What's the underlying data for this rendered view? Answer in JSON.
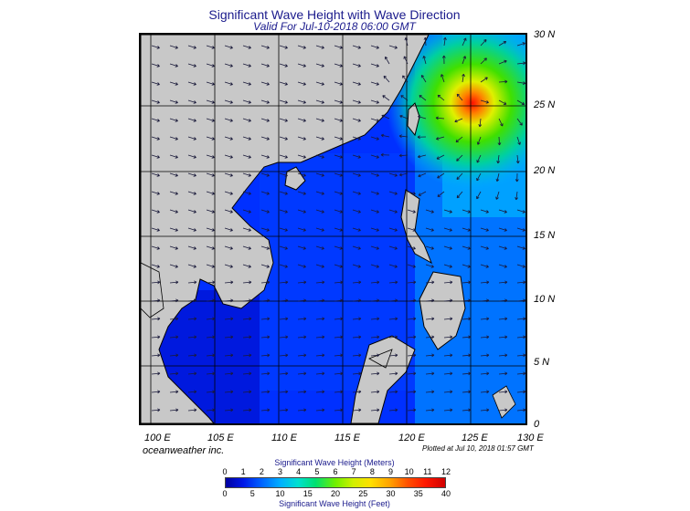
{
  "title": "Significant Wave Height with Wave Direction",
  "subtitle": "Valid For Jul-10-2018 06:00 GMT",
  "credit": "oceanweather inc.",
  "plotted": "Plotted at Jul 10, 2018 01:57 GMT",
  "lat_labels": [
    "30 N",
    "25 N",
    "20 N",
    "15 N",
    "10 N",
    "5 N",
    "0"
  ],
  "lon_labels": [
    "100 E",
    "105 E",
    "110 E",
    "115 E",
    "120 E",
    "125 E",
    "130 E"
  ],
  "colorbar": {
    "meters_title": "Significant Wave Height (Meters)",
    "feet_title": "Significant Wave Height (Feet)",
    "meters_ticks": [
      "0",
      "1",
      "2",
      "3",
      "4",
      "5",
      "6",
      "7",
      "8",
      "9",
      "10",
      "11",
      "12"
    ],
    "feet_ticks": [
      "0",
      "5",
      "10",
      "15",
      "20",
      "25",
      "30",
      "35",
      "40"
    ]
  },
  "colors": {
    "land": "#c8c8c8",
    "sea_low": "#0000c0",
    "sea_mid": "#0060ff",
    "peak": "#ff2000"
  }
}
